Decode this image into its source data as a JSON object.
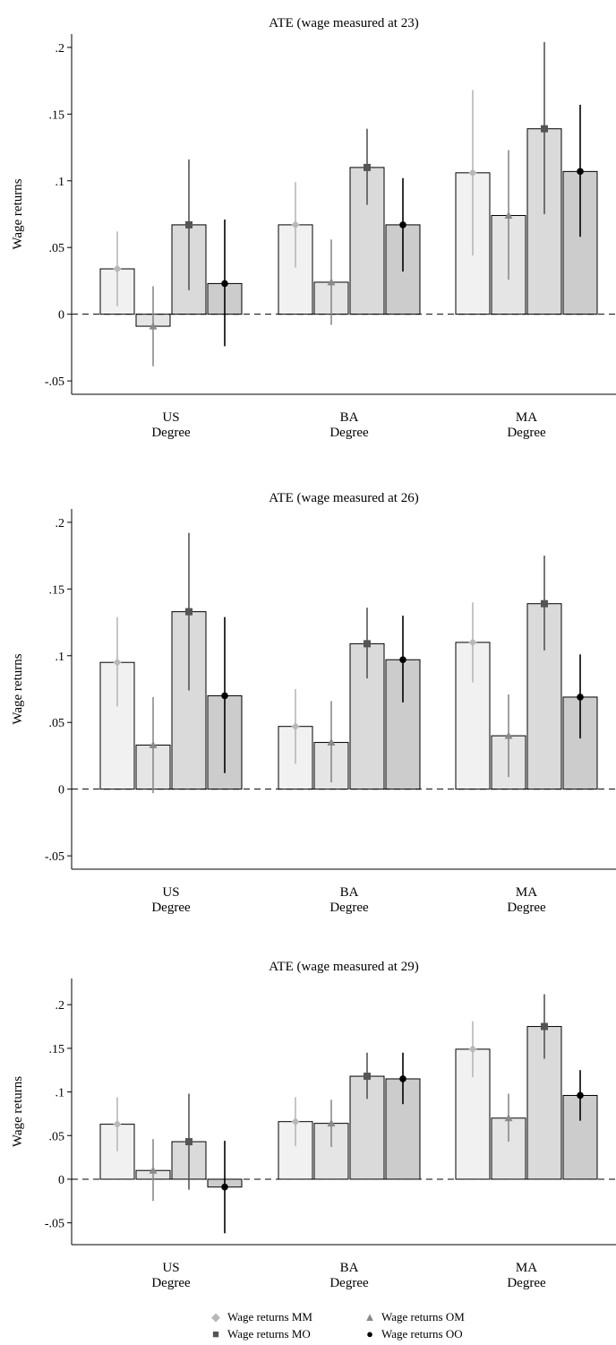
{
  "chart_data": [
    {
      "type": "bar",
      "title": "ATE (wage measured at 23)",
      "ylabel": "Wage returns",
      "xlabel": "",
      "ylim": [
        -0.06,
        0.21
      ],
      "yticks": [
        -0.05,
        0,
        0.05,
        0.1,
        0.15,
        0.2
      ],
      "ytick_labels": [
        "-.05",
        "0",
        ".05",
        ".1",
        ".15",
        ".2"
      ],
      "categories": [
        [
          "US",
          "Degree"
        ],
        [
          "BA",
          "Degree"
        ],
        [
          "MA",
          "Degree"
        ]
      ],
      "series": [
        {
          "name": "Wage returns MM",
          "values": [
            0.034,
            0.067,
            0.106
          ],
          "ci_low": [
            0.006,
            0.035,
            0.044
          ],
          "ci_high": [
            0.062,
            0.099,
            0.168
          ]
        },
        {
          "name": "Wage returns OM",
          "values": [
            -0.009,
            0.024,
            0.074
          ],
          "ci_low": [
            -0.039,
            -0.008,
            0.026
          ],
          "ci_high": [
            0.021,
            0.056,
            0.123
          ]
        },
        {
          "name": "Wage returns MO",
          "values": [
            0.067,
            0.11,
            0.139
          ],
          "ci_low": [
            0.018,
            0.082,
            0.075
          ],
          "ci_high": [
            0.116,
            0.139,
            0.204
          ]
        },
        {
          "name": "Wage returns OO",
          "values": [
            0.023,
            0.067,
            0.107
          ],
          "ci_low": [
            -0.024,
            0.032,
            0.058
          ],
          "ci_high": [
            0.071,
            0.102,
            0.157
          ]
        }
      ]
    },
    {
      "type": "bar",
      "title": "ATE (wage measured at 26)",
      "ylabel": "Wage returns",
      "xlabel": "",
      "ylim": [
        -0.06,
        0.21
      ],
      "yticks": [
        -0.05,
        0,
        0.05,
        0.1,
        0.15,
        0.2
      ],
      "ytick_labels": [
        "-.05",
        "0",
        ".05",
        ".1",
        ".15",
        ".2"
      ],
      "categories": [
        [
          "US",
          "Degree"
        ],
        [
          "BA",
          "Degree"
        ],
        [
          "MA",
          "Degree"
        ]
      ],
      "series": [
        {
          "name": "Wage returns MM",
          "values": [
            0.095,
            0.047,
            0.11
          ],
          "ci_low": [
            0.062,
            0.019,
            0.08
          ],
          "ci_high": [
            0.129,
            0.075,
            0.14
          ]
        },
        {
          "name": "Wage returns OM",
          "values": [
            0.033,
            0.035,
            0.04
          ],
          "ci_low": [
            -0.003,
            0.005,
            0.009
          ],
          "ci_high": [
            0.069,
            0.066,
            0.071
          ]
        },
        {
          "name": "Wage returns MO",
          "values": [
            0.133,
            0.109,
            0.139
          ],
          "ci_low": [
            0.074,
            0.083,
            0.104
          ],
          "ci_high": [
            0.192,
            0.136,
            0.175
          ]
        },
        {
          "name": "Wage returns OO",
          "values": [
            0.07,
            0.097,
            0.069
          ],
          "ci_low": [
            0.012,
            0.065,
            0.038
          ],
          "ci_high": [
            0.129,
            0.13,
            0.101
          ]
        }
      ]
    },
    {
      "type": "bar",
      "title": "ATE (wage measured at 29)",
      "ylabel": "Wage returns",
      "xlabel": "",
      "ylim": [
        -0.075,
        0.23
      ],
      "yticks": [
        -0.05,
        0,
        0.05,
        0.1,
        0.15,
        0.2
      ],
      "ytick_labels": [
        "-.05",
        "0",
        ".05",
        ".1",
        ".15",
        ".2"
      ],
      "categories": [
        [
          "US",
          "Degree"
        ],
        [
          "BA",
          "Degree"
        ],
        [
          "MA",
          "Degree"
        ]
      ],
      "series": [
        {
          "name": "Wage returns MM",
          "values": [
            0.063,
            0.066,
            0.149
          ],
          "ci_low": [
            0.032,
            0.038,
            0.117
          ],
          "ci_high": [
            0.094,
            0.094,
            0.181
          ]
        },
        {
          "name": "Wage returns OM",
          "values": [
            0.01,
            0.064,
            0.07
          ],
          "ci_low": [
            -0.025,
            0.037,
            0.043
          ],
          "ci_high": [
            0.046,
            0.091,
            0.098
          ]
        },
        {
          "name": "Wage returns MO",
          "values": [
            0.043,
            0.118,
            0.175
          ],
          "ci_low": [
            -0.012,
            0.092,
            0.138
          ],
          "ci_high": [
            0.098,
            0.145,
            0.212
          ]
        },
        {
          "name": "Wage returns OO",
          "values": [
            -0.009,
            0.115,
            0.096
          ],
          "ci_low": [
            -0.062,
            0.086,
            0.067
          ],
          "ci_high": [
            0.044,
            0.145,
            0.125
          ]
        }
      ]
    }
  ],
  "legend": {
    "position": "bottom",
    "items": [
      {
        "label": "Wage returns MM",
        "symbol": "diamond"
      },
      {
        "label": "Wage returns OM",
        "symbol": "triangle"
      },
      {
        "label": "Wage returns MO",
        "symbol": "square"
      },
      {
        "label": "Wage returns OO",
        "symbol": "circle"
      }
    ]
  },
  "colors": {
    "bar_fill": [
      "#f1f1f1",
      "#e5e5e5",
      "#dadada",
      "#cccccc"
    ],
    "ci": [
      "#b8b8b8",
      "#8a8a8a",
      "#555555",
      "#000000"
    ],
    "marker": [
      "#b8b8b8",
      "#8a8a8a",
      "#555555",
      "#000000"
    ]
  }
}
